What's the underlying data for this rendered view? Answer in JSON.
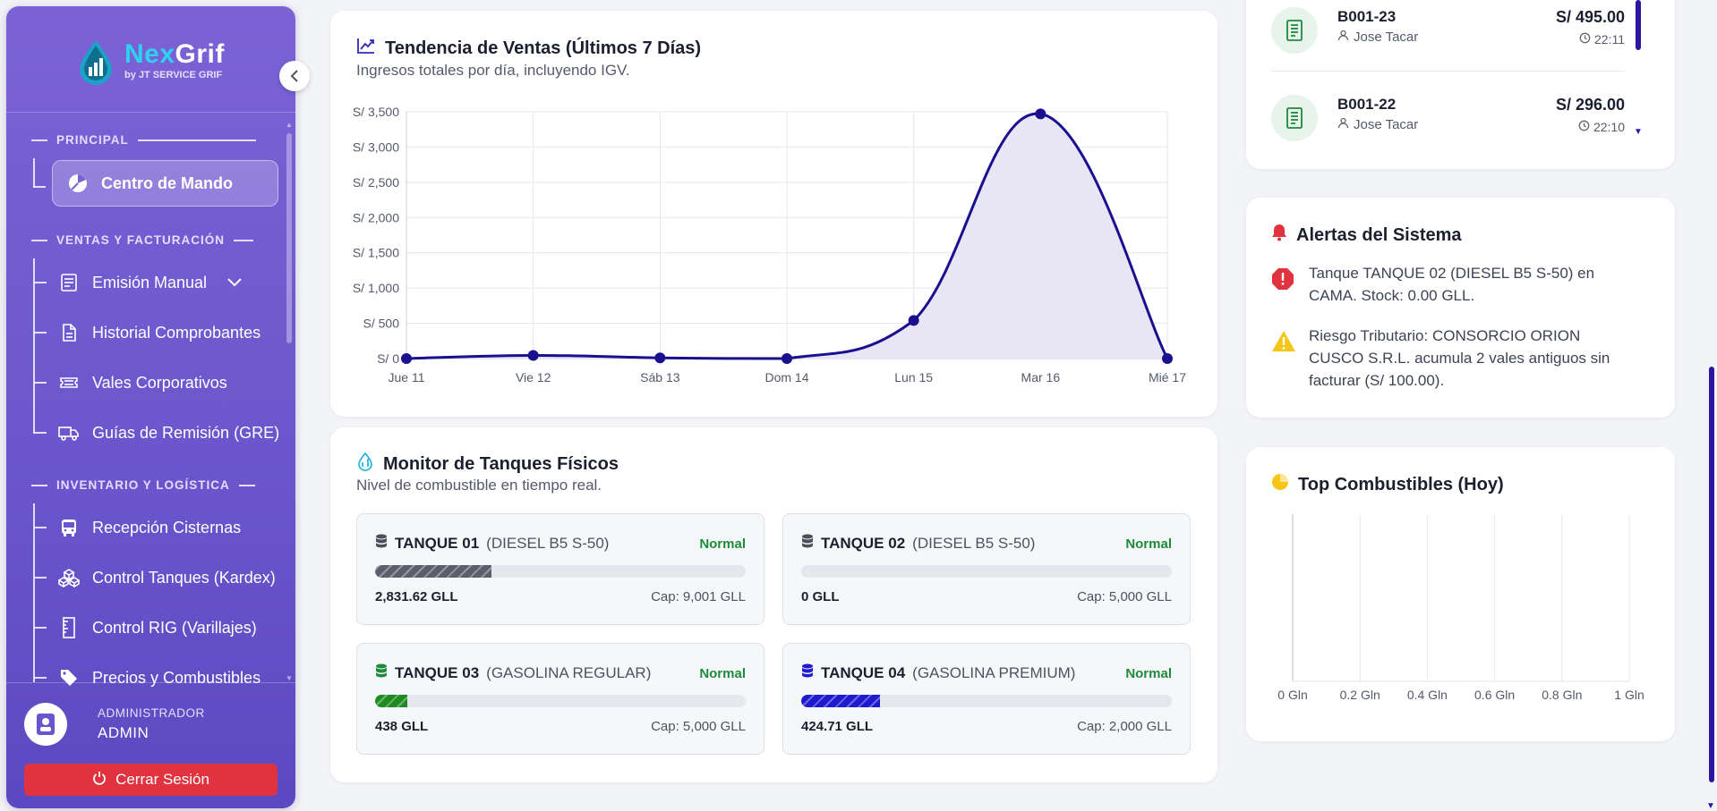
{
  "brand": {
    "name_part1": "Nex",
    "name_part2": "Grif",
    "subtitle": "by JT SERVICE GRIF"
  },
  "sidebar": {
    "sections": {
      "principal": "PRINCIPAL",
      "ventas": "VENTAS Y FACTURACIÓN",
      "inventario": "INVENTARIO Y LOGÍSTICA"
    },
    "items": [
      {
        "label": "Centro de Mando",
        "icon": "pie-chart-icon",
        "active": true
      },
      {
        "label": "Emisión Manual",
        "icon": "receipt-icon",
        "has_submenu": true
      },
      {
        "label": "Historial Comprobantes",
        "icon": "document-icon"
      },
      {
        "label": "Vales Corporativos",
        "icon": "ticket-icon"
      },
      {
        "label": "Guías de Remisión (GRE)",
        "icon": "truck-icon"
      },
      {
        "label": "Recepción Cisternas",
        "icon": "bus-icon"
      },
      {
        "label": "Control Tanques (Kardex)",
        "icon": "cubes-icon"
      },
      {
        "label": "Control RIG (Varillajes)",
        "icon": "ruler-icon"
      },
      {
        "label": "Precios y Combustibles",
        "icon": "tags-icon"
      }
    ],
    "user": {
      "role": "ADMINISTRADOR",
      "name": "ADMIN"
    },
    "logout_label": "Cerrar Sesión"
  },
  "sales_chart": {
    "title": "Tendencia de Ventas (Últimos 7 Días)",
    "subtitle": "Ingresos totales por día, incluyendo IGV."
  },
  "chart_data": [
    {
      "type": "area",
      "title": "Tendencia de Ventas (Últimos 7 Días)",
      "categories": [
        "Jue 11",
        "Vie 12",
        "Sáb 13",
        "Dom 14",
        "Lun 15",
        "Mar 16",
        "Mié 17"
      ],
      "series": [
        {
          "values": [
            0,
            45,
            10,
            0,
            540,
            3470,
            0
          ]
        }
      ],
      "y_ticks": [
        "S/ 0",
        "S/ 500",
        "S/ 1,000",
        "S/ 1,500",
        "S/ 2,000",
        "S/ 2,500",
        "S/ 3,000",
        "S/ 3,500"
      ],
      "ylim": [
        0,
        3500
      ],
      "grid": true,
      "color": "#1a0f8f",
      "fill": "#e6e2f4"
    },
    {
      "type": "bar",
      "title": "Top Combustibles (Hoy)",
      "categories": [],
      "values": [],
      "x_ticks": [
        "0 Gln",
        "0.2 Gln",
        "0.4 Gln",
        "0.6 Gln",
        "0.8 Gln",
        "1 Gln"
      ],
      "xlim": [
        0,
        1
      ],
      "grid": true
    }
  ],
  "tanks_card": {
    "title": "Monitor de Tanques Físicos",
    "subtitle": "Nivel de combustible en tiempo real."
  },
  "tanks": [
    {
      "name": "TANQUE 01",
      "type": "(DIESEL B5 S-50)",
      "status": "Normal",
      "volume": "2,831.62 GLL",
      "capacity": "Cap: 9,001 GLL",
      "level": 0.3146,
      "color": "#5a5f6b",
      "icon_color": "#4a4f5c"
    },
    {
      "name": "TANQUE 02",
      "type": "(DIESEL B5 S-50)",
      "status": "Normal",
      "volume": "0 GLL",
      "capacity": "Cap: 5,000 GLL",
      "level": 0,
      "color": "#5a5f6b",
      "icon_color": "#4a4f5c"
    },
    {
      "name": "TANQUE 03",
      "type": "(GASOLINA REGULAR)",
      "status": "Normal",
      "volume": "438 GLL",
      "capacity": "Cap: 5,000 GLL",
      "level": 0.0876,
      "color": "#1f8a1f",
      "icon_color": "#1f8a3b"
    },
    {
      "name": "TANQUE 04",
      "type": "(GASOLINA PREMIUM)",
      "status": "Normal",
      "volume": "424.71 GLL",
      "capacity": "Cap: 2,000 GLL",
      "level": 0.2124,
      "color": "#1d1ad0",
      "icon_color": "#1d1ad0"
    }
  ],
  "receipts": [
    {
      "id": "B001-23",
      "user": "Jose Tacar",
      "amount": "S/ 495.00",
      "time": "22:11"
    },
    {
      "id": "B001-22",
      "user": "Jose Tacar",
      "amount": "S/ 296.00",
      "time": "22:10"
    }
  ],
  "alerts": {
    "title": "Alertas del Sistema",
    "items": [
      {
        "icon": "error-octagon-icon",
        "text": "Tanque TANQUE 02 (DIESEL B5 S-50) en CAMA. Stock: 0.00 GLL."
      },
      {
        "icon": "warning-triangle-icon",
        "text": "Riesgo Tributario: CONSORCIO ORION CUSCO S.R.L. acumula 2 vales antiguos sin facturar (S/ 100.00)."
      }
    ]
  },
  "top_fuels": {
    "title": "Top Combustibles (Hoy)"
  }
}
